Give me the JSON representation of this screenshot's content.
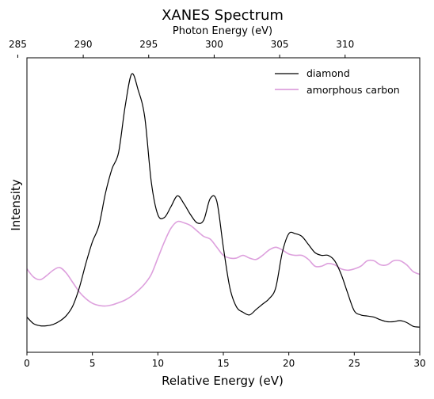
{
  "chart_data": {
    "type": "line",
    "title": "XANES Spectrum",
    "xlabel": "Relative Energy (eV)",
    "ylabel": "Intensity",
    "top_axis_label": "Photon Energy (eV)",
    "xlim": [
      0,
      30
    ],
    "ylim": [
      0,
      1.0
    ],
    "x_ticks": [
      0,
      5,
      10,
      15,
      20,
      25,
      30
    ],
    "x_tick_labels": [
      "0",
      "5",
      "10",
      "15",
      "20",
      "25",
      "30"
    ],
    "top_ticks": [
      285,
      290,
      295,
      300,
      305,
      310
    ],
    "top_tick_labels": [
      "285",
      "290",
      "295",
      "300",
      "305",
      "310"
    ],
    "top_axis_offset": 285.7,
    "y_tick_labels": false,
    "grid": false,
    "legend_position": "top-right",
    "series": [
      {
        "name": "diamond",
        "color": "#000000",
        "x": [
          0,
          0.5,
          1.0,
          1.5,
          2.0,
          2.5,
          3.0,
          3.5,
          4.0,
          4.5,
          5.0,
          5.5,
          6.0,
          6.5,
          7.0,
          7.5,
          8.0,
          8.5,
          9.0,
          9.5,
          10.0,
          10.5,
          11.0,
          11.5,
          12.0,
          12.5,
          13.0,
          13.5,
          14.0,
          14.5,
          15.0,
          15.5,
          16.0,
          16.5,
          17.0,
          17.5,
          18.0,
          18.5,
          19.0,
          19.5,
          20.0,
          20.5,
          21.0,
          21.5,
          22.0,
          22.5,
          23.0,
          23.5,
          24.0,
          24.5,
          25.0,
          25.5,
          26.0,
          26.5,
          27.0,
          27.5,
          28.0,
          28.5,
          29.0,
          29.5,
          30.0
        ],
        "y": [
          0.092,
          0.068,
          0.06,
          0.06,
          0.065,
          0.077,
          0.097,
          0.133,
          0.2,
          0.29,
          0.37,
          0.43,
          0.55,
          0.64,
          0.7,
          0.87,
          0.99,
          0.93,
          0.83,
          0.59,
          0.47,
          0.46,
          0.5,
          0.54,
          0.51,
          0.47,
          0.44,
          0.45,
          0.53,
          0.52,
          0.35,
          0.2,
          0.13,
          0.11,
          0.1,
          0.12,
          0.14,
          0.16,
          0.2,
          0.33,
          0.4,
          0.4,
          0.39,
          0.36,
          0.33,
          0.32,
          0.32,
          0.3,
          0.25,
          0.18,
          0.115,
          0.1,
          0.096,
          0.092,
          0.082,
          0.075,
          0.075,
          0.079,
          0.072,
          0.058,
          0.055
        ]
      },
      {
        "name": "amorphous carbon",
        "color": "#dda0dd",
        "x": [
          0,
          0.5,
          1.0,
          1.5,
          2.0,
          2.5,
          3.0,
          3.5,
          4.0,
          4.5,
          5.0,
          5.5,
          6.0,
          6.5,
          7.0,
          7.5,
          8.0,
          8.5,
          9.0,
          9.5,
          10.0,
          10.5,
          11.0,
          11.5,
          12.0,
          12.5,
          13.0,
          13.5,
          14.0,
          14.5,
          15.0,
          15.5,
          16.0,
          16.5,
          17.0,
          17.5,
          18.0,
          18.5,
          19.0,
          19.5,
          20.0,
          20.5,
          21.0,
          21.5,
          22.0,
          22.5,
          23.0,
          23.5,
          24.0,
          24.5,
          25.0,
          25.5,
          26.0,
          26.5,
          27.0,
          27.5,
          28.0,
          28.5,
          29.0,
          29.5,
          30.0
        ],
        "y": [
          0.27,
          0.24,
          0.23,
          0.245,
          0.265,
          0.275,
          0.255,
          0.22,
          0.185,
          0.16,
          0.143,
          0.135,
          0.133,
          0.137,
          0.145,
          0.155,
          0.17,
          0.19,
          0.215,
          0.25,
          0.31,
          0.37,
          0.42,
          0.445,
          0.44,
          0.43,
          0.41,
          0.39,
          0.38,
          0.35,
          0.32,
          0.31,
          0.31,
          0.32,
          0.31,
          0.305,
          0.32,
          0.34,
          0.35,
          0.34,
          0.325,
          0.32,
          0.32,
          0.305,
          0.28,
          0.28,
          0.29,
          0.285,
          0.27,
          0.265,
          0.27,
          0.28,
          0.3,
          0.3,
          0.285,
          0.285,
          0.3,
          0.3,
          0.285,
          0.26,
          0.25
        ]
      }
    ]
  }
}
